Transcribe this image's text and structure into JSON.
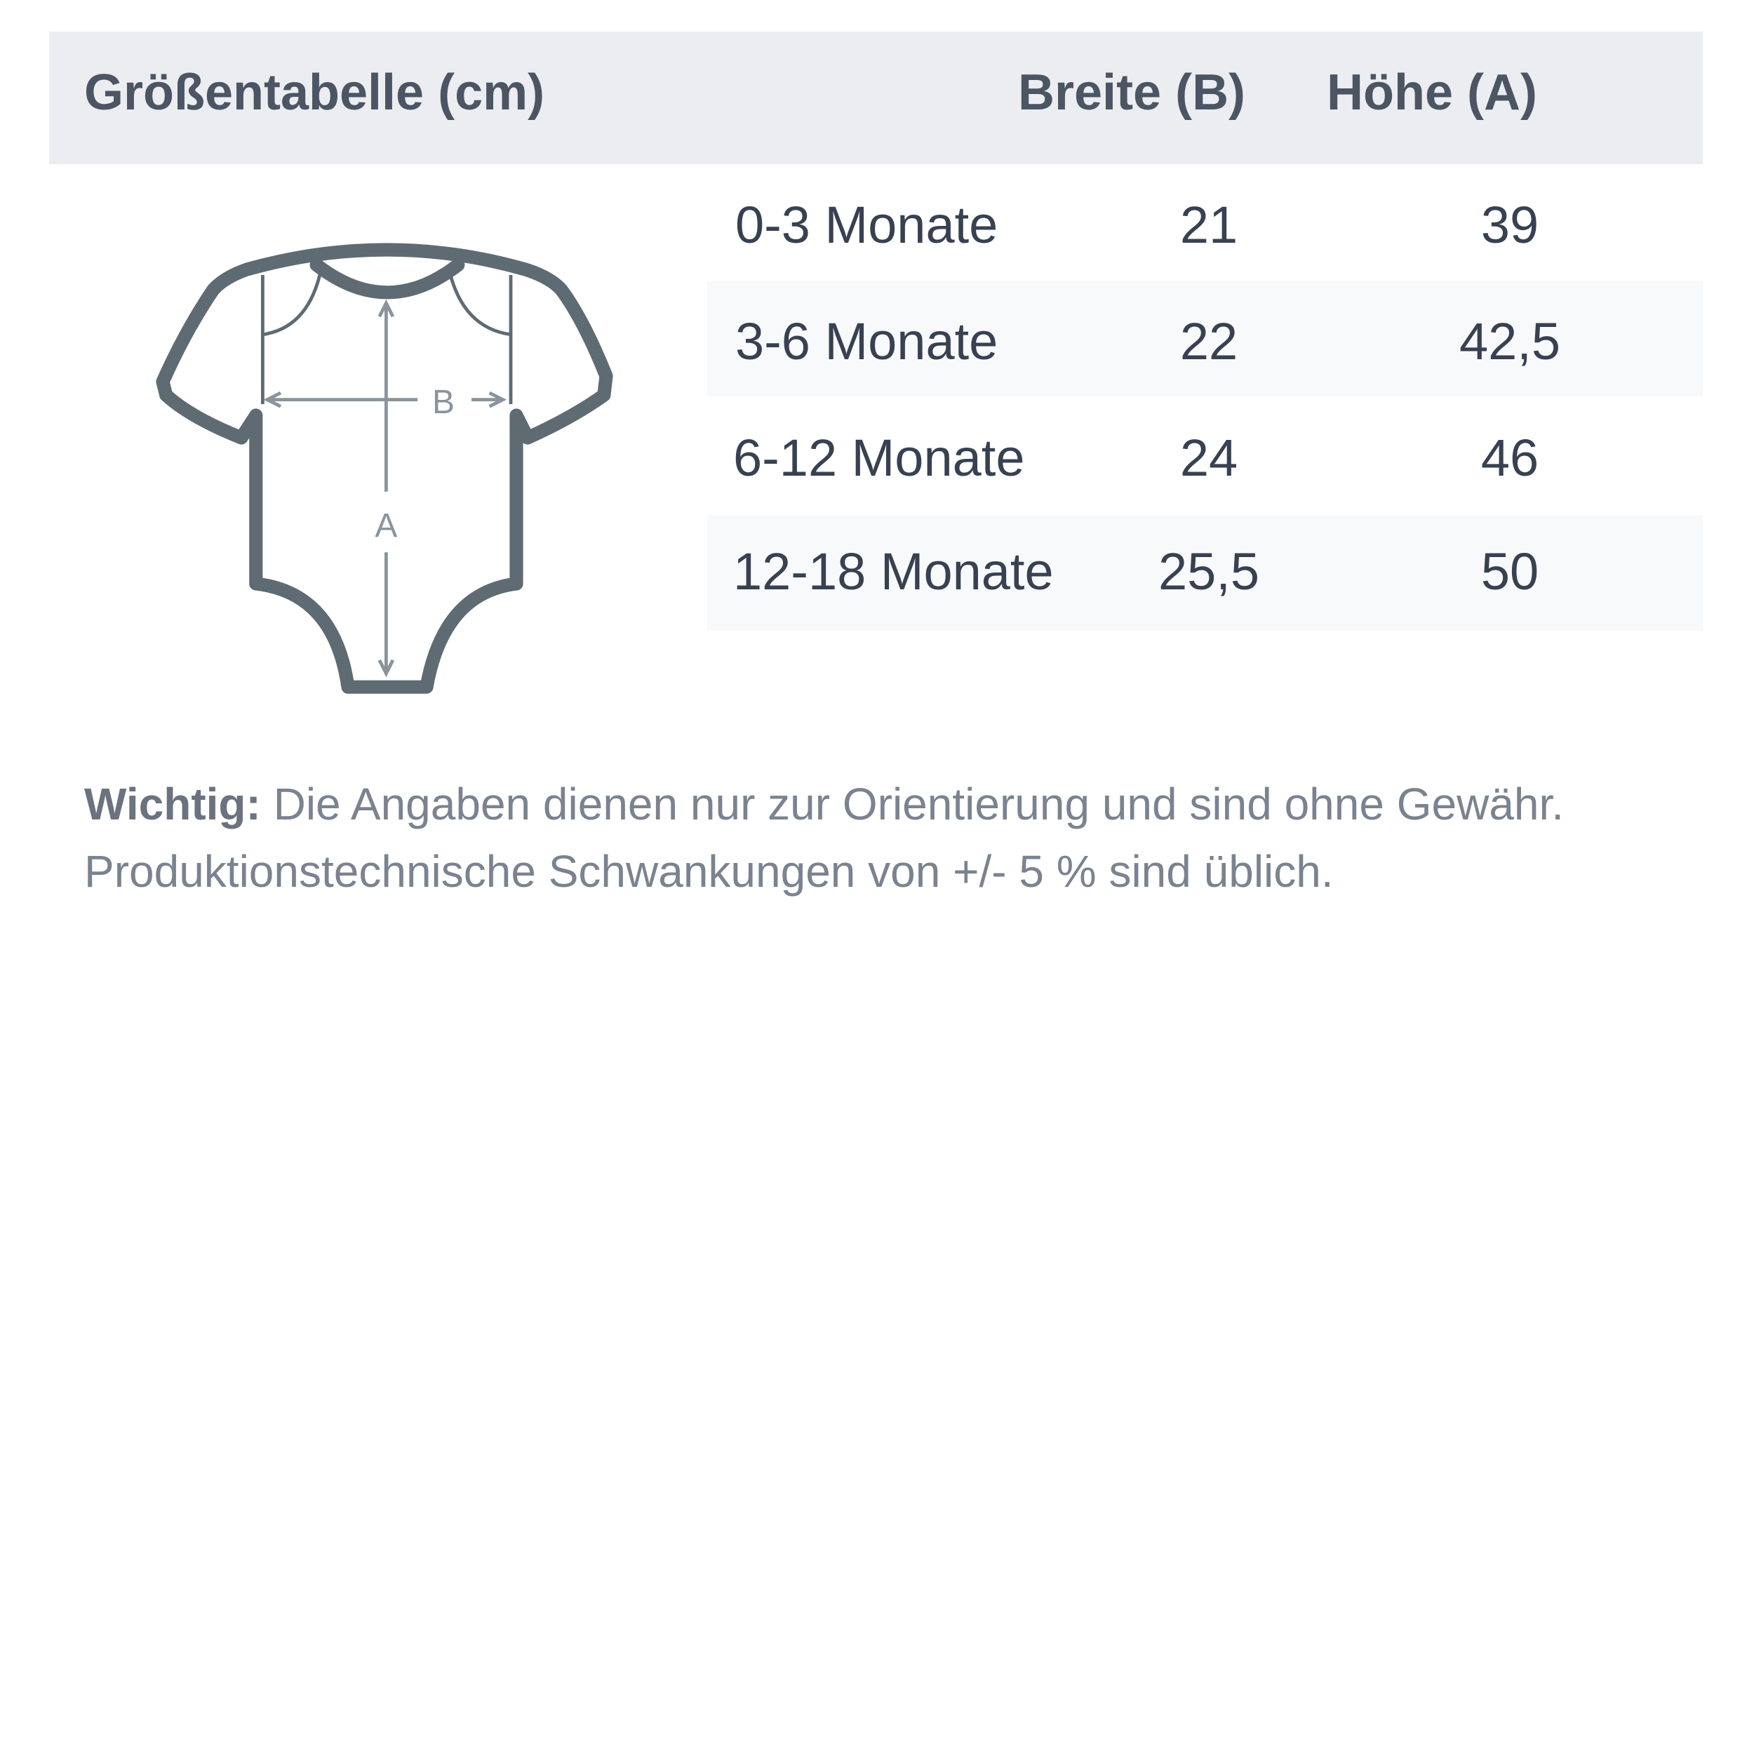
{
  "header": {
    "title": "Größentabelle (cm)",
    "col_width": "Breite (B)",
    "col_height": "Höhe (A)"
  },
  "rows": [
    {
      "size": "0-3 Monate",
      "width": "21",
      "height": "39"
    },
    {
      "size": "3-6 Monate",
      "width": "22",
      "height": "42,5"
    },
    {
      "size": "6-12 Monate",
      "width": "24",
      "height": "46"
    },
    {
      "size": "12-18 Monate",
      "width": "25,5",
      "height": "50"
    }
  ],
  "diagram": {
    "icon": "baby-bodysuit-icon",
    "label_width": "B",
    "label_height": "A",
    "outline_color": "#5f6b73",
    "arrow_color": "#8a949c"
  },
  "note": {
    "bold": "Wichtig:",
    "text": " Die Angaben dienen nur zur Orientierung und sind ohne Gewähr.",
    "text2": "Produktionstechnische Schwankungen von +/- 5 % sind üblich."
  }
}
